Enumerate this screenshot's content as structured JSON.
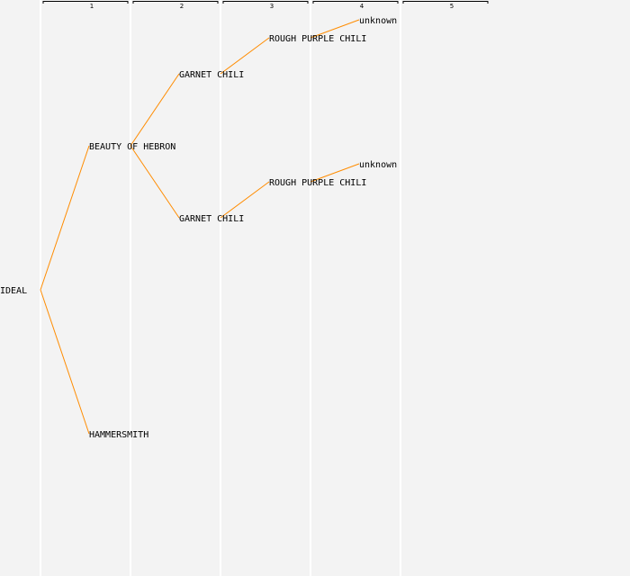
{
  "colors": {
    "background": "#f3f3f3",
    "column_divider": "#ffffff",
    "edge": "#ff8c00",
    "header_bracket": "#000000",
    "text": "#000000"
  },
  "generations": [
    "1",
    "2",
    "3",
    "4",
    "5"
  ],
  "tree": {
    "name": "IDEAL",
    "children": [
      {
        "name": "BEAUTY OF HEBRON",
        "children": [
          {
            "name": "GARNET CHILI",
            "children": [
              {
                "name": "ROUGH PURPLE CHILI",
                "children": [
                  {
                    "name": "unknown",
                    "children": []
                  }
                ]
              }
            ]
          },
          {
            "name": "GARNET CHILI",
            "children": [
              {
                "name": "ROUGH PURPLE CHILI",
                "children": [
                  {
                    "name": "unknown",
                    "children": []
                  }
                ]
              }
            ]
          }
        ]
      },
      {
        "name": "HAMMERSMITH",
        "children": []
      }
    ]
  }
}
